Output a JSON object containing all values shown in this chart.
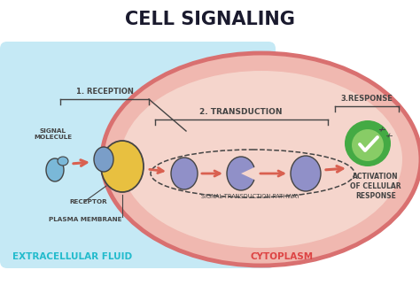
{
  "title": "CELL SIGNALING",
  "title_fontsize": 15,
  "title_color": "#1a1a2e",
  "bg_color": "#ffffff",
  "extracellular_bg": "#c5e9f5",
  "cytoplasm_border": "#d97070",
  "cytoplasm_outer": "#f0b8b0",
  "cytoplasm_inner": "#f5d5cc",
  "label_extracellular": "EXTRACELLULAR FLUID",
  "label_cytoplasm": "CYTOPLASM",
  "label_reception": "1. RECEPTION",
  "label_transduction": "2. TRANSDUCTION",
  "label_response": "3.RESPONSE",
  "label_signal_molecule": "SIGNAL\nMOLECULE",
  "label_receptor": "RECEPTOR",
  "label_plasma_membrane": "PLASMA MEMBRANE",
  "label_pathway": "SIGNAL-TRANSDUCTION PATHWAY",
  "label_activation": "ACTIVATION\nOF CELLULAR\nRESPONSE",
  "arrow_color": "#d96050",
  "outline_color": "#444444",
  "signal_molecule_color": "#7ab8d8",
  "receptor_yellow_color": "#e8c040",
  "receptor_blue_color": "#7a9ec8",
  "pathway_mol_color": "#9090c8",
  "check_green": "#44aa44",
  "check_light": "#88cc66",
  "extracellular_label_color": "#22bbcc",
  "cytoplasm_label_color": "#dd4444"
}
